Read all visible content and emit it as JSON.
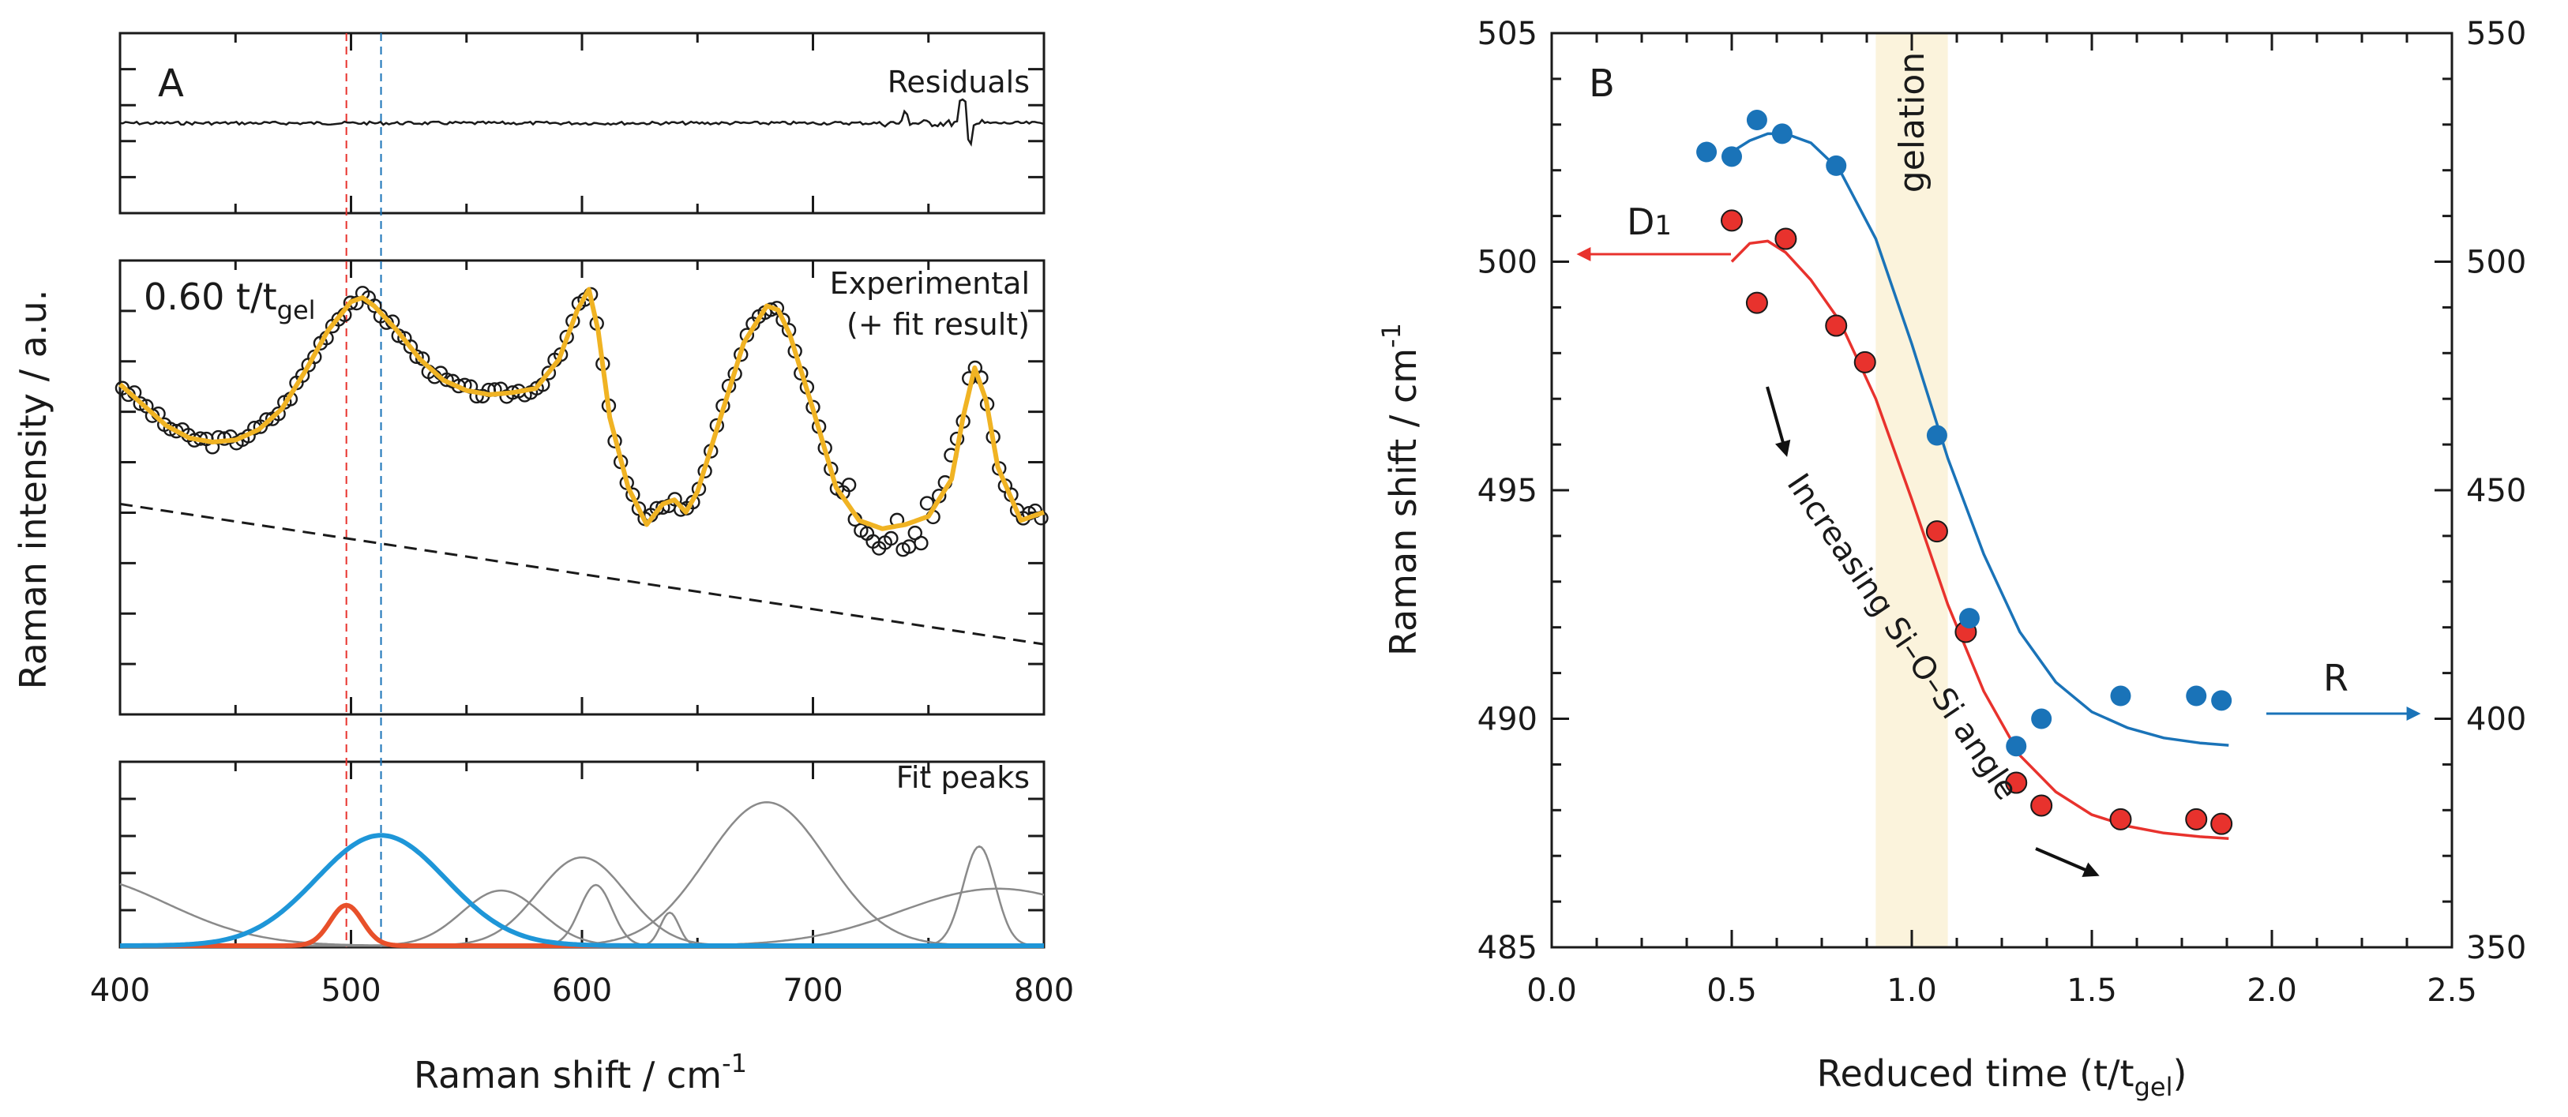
{
  "colors": {
    "red": "#e8322d",
    "blue": "#1a73b8",
    "fit_blue": "#1e96d8",
    "fit_red": "#e8502a",
    "orange": "#f0b323",
    "gray": "#8a8a8a",
    "gelation_band": "#fbf3dc"
  },
  "chart_data": [
    {
      "panel": "A",
      "type": "line",
      "panel_label": "A",
      "xlabel": "Raman shift / cm",
      "xlabel_sup": "-1",
      "ylabel": "Raman intensity / a.u.",
      "xlim": [
        400,
        800
      ],
      "xticks": [
        "400",
        "500",
        "600",
        "700",
        "800"
      ],
      "xtick_values": [
        400,
        500,
        600,
        700,
        800
      ],
      "reference_lines": [
        {
          "name": "D1",
          "x": 498,
          "color": "red",
          "style": "dashed"
        },
        {
          "name": "R",
          "x": 513,
          "color": "blue",
          "style": "dashed"
        }
      ],
      "subpanels": {
        "residuals": {
          "title": "Residuals",
          "note": "flat noise around zero with small spikes near 740 and 765 cm-1"
        },
        "experimental": {
          "title_line1": "Experimental",
          "title_line2": "(+ fit result)",
          "annotation_main": "0.60 t/t",
          "annotation_sub": "gel",
          "series": [
            {
              "name": "Experimental",
              "marker": "open circle"
            },
            {
              "name": "fit result",
              "color": "orange"
            },
            {
              "name": "baseline",
              "style": "dashed",
              "x": [
                400,
                800
              ],
              "y": [
                0.51,
                0.17
              ]
            }
          ],
          "fit_curve_x": [
            400,
            410,
            420,
            430,
            440,
            450,
            460,
            470,
            480,
            490,
            500,
            505,
            510,
            520,
            530,
            540,
            550,
            560,
            570,
            580,
            590,
            598,
            603,
            607,
            612,
            620,
            628,
            635,
            640,
            645,
            650,
            660,
            670,
            680,
            685,
            690,
            700,
            710,
            720,
            730,
            740,
            750,
            760,
            765,
            770,
            775,
            780,
            790,
            800
          ],
          "fit_curve_y": [
            0.8,
            0.75,
            0.7,
            0.67,
            0.66,
            0.665,
            0.69,
            0.74,
            0.83,
            0.93,
            1.0,
            1.01,
            0.99,
            0.93,
            0.86,
            0.81,
            0.785,
            0.775,
            0.78,
            0.79,
            0.86,
            0.98,
            1.03,
            0.93,
            0.72,
            0.55,
            0.46,
            0.51,
            0.52,
            0.49,
            0.54,
            0.72,
            0.9,
            0.99,
            0.98,
            0.92,
            0.74,
            0.55,
            0.47,
            0.45,
            0.46,
            0.48,
            0.57,
            0.72,
            0.84,
            0.76,
            0.6,
            0.47,
            0.49
          ]
        },
        "fit_peaks": {
          "title": "Fit peaks",
          "peaks": [
            {
              "name": "D1",
              "center": 498,
              "height": 0.22,
              "width": 7,
              "color": "fit_red"
            },
            {
              "name": "R",
              "center": 513,
              "height": 0.6,
              "width": 28,
              "color": "fit_blue"
            },
            {
              "name": "p565",
              "center": 565,
              "height": 0.3,
              "width": 17,
              "color": "gray"
            },
            {
              "name": "p600",
              "center": 600,
              "height": 0.48,
              "width": 19,
              "color": "gray"
            },
            {
              "name": "p606",
              "center": 606,
              "height": 0.33,
              "width": 7,
              "color": "gray"
            },
            {
              "name": "p638",
              "center": 638,
              "height": 0.18,
              "width": 4,
              "color": "gray"
            },
            {
              "name": "p680",
              "center": 680,
              "height": 0.78,
              "width": 26,
              "color": "gray"
            },
            {
              "name": "p772",
              "center": 772,
              "height": 0.54,
              "width": 7,
              "color": "gray"
            },
            {
              "name": "p780",
              "center": 780,
              "height": 0.31,
              "width": 42,
              "color": "gray"
            },
            {
              "name": "p380",
              "center": 380,
              "height": 0.38,
              "width": 40,
              "color": "gray"
            }
          ]
        }
      }
    },
    {
      "panel": "B",
      "type": "scatter",
      "panel_label": "B",
      "xlabel": "Reduced time (t/t",
      "xlabel_sub": "gel",
      "xlabel_end": ")",
      "ylabel": "Raman shift / cm",
      "ylabel_sup": "-1",
      "xlim": [
        0.0,
        2.5
      ],
      "ylim_left": [
        485,
        505
      ],
      "ylim_right": [
        350,
        550
      ],
      "xticks": [
        "0.0",
        "0.5",
        "1.0",
        "1.5",
        "2.0",
        "2.5"
      ],
      "xtick_values": [
        0.0,
        0.5,
        1.0,
        1.5,
        2.0,
        2.5
      ],
      "yticks_left": [
        "485",
        "490",
        "495",
        "500",
        "505"
      ],
      "ytick_left_values": [
        485,
        490,
        495,
        500,
        505
      ],
      "yticks_right": [
        "350",
        "400",
        "450",
        "500",
        "550"
      ],
      "ytick_right_values": [
        350,
        400,
        450,
        500,
        550
      ],
      "gelation_band": {
        "label": "gelation",
        "x_range": [
          0.9,
          1.1
        ]
      },
      "series": [
        {
          "name": "D1",
          "label_main": "D",
          "label_sub": "1",
          "axis": "left",
          "color": "red",
          "x": [
            0.5,
            0.57,
            0.65,
            0.79,
            0.87,
            1.07,
            1.15,
            1.29,
            1.36,
            1.58,
            1.79,
            1.86
          ],
          "y": [
            500.9,
            499.1,
            500.5,
            498.6,
            497.8,
            494.1,
            491.9,
            488.6,
            488.1,
            487.8,
            487.8,
            487.7
          ],
          "fit_x": [
            0.5,
            0.55,
            0.6,
            0.65,
            0.72,
            0.8,
            0.9,
            1.0,
            1.1,
            1.2,
            1.3,
            1.4,
            1.5,
            1.6,
            1.7,
            1.8,
            1.88
          ],
          "fit_y": [
            500.0,
            500.4,
            500.45,
            500.2,
            499.6,
            498.7,
            497.0,
            494.8,
            492.5,
            490.6,
            489.2,
            488.4,
            487.9,
            487.65,
            487.5,
            487.42,
            487.38
          ],
          "arrow_direction": "left"
        },
        {
          "name": "R",
          "label_main": "R",
          "axis": "right",
          "color": "blue",
          "x": [
            0.43,
            0.5,
            0.57,
            0.64,
            0.79,
            1.07,
            1.16,
            1.29,
            1.36,
            1.58,
            1.79,
            1.86
          ],
          "y": [
            524,
            523,
            531,
            528,
            521,
            462,
            422,
            394,
            400,
            405,
            405,
            404
          ],
          "fit_x": [
            0.5,
            0.55,
            0.6,
            0.65,
            0.72,
            0.8,
            0.9,
            1.0,
            1.1,
            1.2,
            1.3,
            1.4,
            1.5,
            1.6,
            1.7,
            1.8,
            1.88
          ],
          "fit_y": [
            524.0,
            526.5,
            528.0,
            528.0,
            526.0,
            520.0,
            505.0,
            482.0,
            457.0,
            436.0,
            419.0,
            408.0,
            401.5,
            398.0,
            395.8,
            394.7,
            394.2
          ],
          "arrow_direction": "right"
        }
      ],
      "annotation": {
        "text": "Increasing Si–O–Si angle"
      }
    }
  ]
}
